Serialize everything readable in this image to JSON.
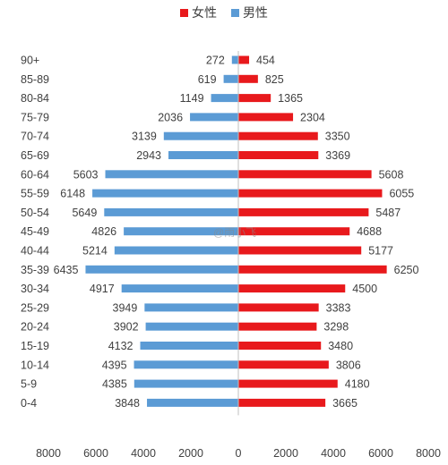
{
  "legend": {
    "female": "女性",
    "male": "男性"
  },
  "watermark": "@雨小飞",
  "colors": {
    "female": "#e8191c",
    "male": "#5b9bd5",
    "axis": "#bfbfbf",
    "text": "#404040"
  },
  "chart_data": {
    "type": "bar",
    "orientation": "horizontal-population-pyramid",
    "categories": [
      "90+",
      "85-89",
      "80-84",
      "75-79",
      "70-74",
      "65-69",
      "60-64",
      "55-59",
      "50-54",
      "45-49",
      "40-44",
      "35-39",
      "30-34",
      "25-29",
      "20-24",
      "15-19",
      "10-14",
      "5-9",
      "0-4"
    ],
    "series": [
      {
        "name": "男性",
        "values": [
          272,
          619,
          1149,
          2036,
          3139,
          2943,
          5603,
          6148,
          5649,
          4826,
          5214,
          6435,
          4917,
          3949,
          3902,
          4132,
          4395,
          4385,
          3848
        ]
      },
      {
        "name": "女性",
        "values": [
          454,
          825,
          1365,
          2304,
          3350,
          3369,
          5608,
          6055,
          5487,
          4688,
          5177,
          6250,
          4500,
          3383,
          3298,
          3480,
          3806,
          4180,
          3665
        ]
      }
    ],
    "xlim": [
      -8000,
      8000
    ],
    "xticks": [
      {
        "value": -8000,
        "label": "8000"
      },
      {
        "value": -6000,
        "label": "6000"
      },
      {
        "value": -4000,
        "label": "4000"
      },
      {
        "value": -2000,
        "label": "2000"
      },
      {
        "value": 0,
        "label": "0"
      },
      {
        "value": 2000,
        "label": "2000"
      },
      {
        "value": 4000,
        "label": "4000"
      },
      {
        "value": 6000,
        "label": "6000"
      },
      {
        "value": 8000,
        "label": "8000"
      }
    ],
    "legend_position": "top",
    "grid": false,
    "title": "",
    "xlabel": "",
    "ylabel": ""
  }
}
